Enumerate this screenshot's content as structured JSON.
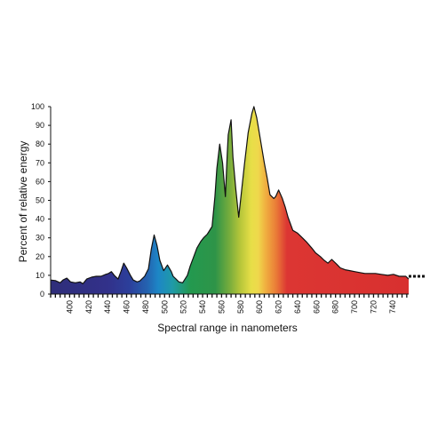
{
  "chart_data": {
    "type": "area",
    "title": "",
    "xlabel": "Spectral range in nanometers",
    "ylabel": "Percent of relative energy",
    "xlim": [
      380,
      757
    ],
    "ylim": [
      0,
      100
    ],
    "y_ticks": [
      0,
      10,
      20,
      30,
      40,
      50,
      60,
      70,
      80,
      90,
      100
    ],
    "x_ticks": [
      400,
      420,
      440,
      460,
      480,
      500,
      520,
      540,
      560,
      580,
      600,
      620,
      640,
      660,
      680,
      700,
      720,
      740
    ],
    "grid": false,
    "legend": "none",
    "fill": "visible-spectrum gradient (violet to red) under curve",
    "x": [
      380,
      385,
      390,
      393,
      397,
      401,
      406,
      411,
      414,
      418,
      423,
      428,
      433,
      438,
      441,
      444,
      447,
      451,
      454,
      457,
      460,
      464,
      467,
      471,
      474,
      479,
      483,
      486,
      489,
      492,
      495,
      499,
      503,
      507,
      509,
      512,
      515,
      519,
      524,
      527,
      530,
      534,
      538,
      541,
      545,
      550,
      553,
      555,
      558,
      561,
      564,
      566,
      567,
      570,
      572,
      575,
      578,
      581,
      584,
      588,
      592,
      594,
      597,
      600,
      605,
      608,
      611,
      615,
      617,
      620,
      624,
      627,
      630,
      635,
      640,
      644,
      649,
      655,
      659,
      664,
      668,
      672,
      676,
      681,
      685,
      690,
      695,
      700,
      705,
      711,
      716,
      722,
      728,
      735,
      741,
      747,
      751,
      754,
      757
    ],
    "values": [
      7.5,
      7.2,
      6.0,
      7.5,
      8.5,
      6.5,
      6.0,
      6.5,
      5.5,
      8.0,
      9.0,
      9.5,
      9.5,
      10.5,
      11.0,
      12.0,
      10.0,
      8.0,
      12.0,
      16.5,
      14.0,
      10.0,
      7.5,
      6.5,
      7.0,
      9.5,
      13.5,
      24.0,
      31.5,
      26.0,
      18.0,
      12.5,
      15.5,
      12.0,
      9.5,
      8.0,
      6.5,
      6.0,
      10.0,
      15.0,
      19.0,
      24.5,
      28.0,
      30.0,
      32.0,
      36.0,
      52.0,
      67.0,
      80.0,
      70.0,
      52.0,
      75.0,
      85.0,
      93.0,
      73.0,
      56.0,
      41.0,
      55.0,
      69.0,
      86.0,
      96.5,
      100.0,
      94.0,
      85.0,
      70.0,
      62.0,
      53.0,
      51.0,
      52.0,
      55.5,
      51.0,
      46.5,
      41.0,
      34.0,
      32.5,
      30.5,
      28.0,
      24.5,
      22.0,
      20.0,
      18.0,
      16.5,
      18.5,
      16.0,
      14.0,
      13.0,
      12.5,
      12.0,
      11.5,
      11.0,
      11.0,
      11.0,
      10.5,
      10.0,
      10.5,
      9.5,
      9.5,
      9.5,
      8.0
    ]
  }
}
